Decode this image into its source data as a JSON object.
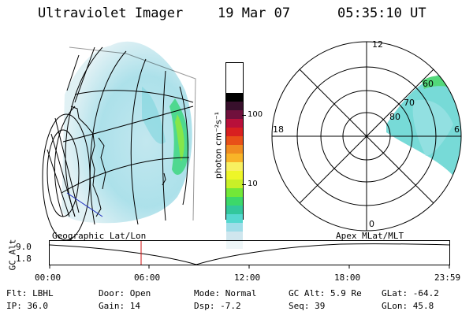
{
  "header": {
    "instrument": "Ultraviolet Imager",
    "date": "19 Mar 07",
    "time": "05:35:10 UT"
  },
  "colorbar": {
    "unit_label": "photon cm⁻²s⁻¹",
    "ticks": [
      "100",
      "10"
    ],
    "colors": [
      "#eef6f8",
      "#cfe6ee",
      "#9fdde8",
      "#55d8cf",
      "#32c79c",
      "#3cd86a",
      "#72e838",
      "#c8f028",
      "#eef628",
      "#f8f060",
      "#f8b428",
      "#f08c20",
      "#e85018",
      "#d82020",
      "#b8103a",
      "#70103c",
      "#38102c",
      "#000000"
    ]
  },
  "left_panel": {
    "caption": "Geographic Lat/Lon"
  },
  "right_panel": {
    "caption": "Apex MLat/MLT",
    "lat_labels": [
      "80",
      "70",
      "60"
    ],
    "mlt_labels": [
      "12",
      "18",
      "6",
      "0"
    ]
  },
  "altitude_strip": {
    "axis_label": "GC Alt",
    "y_ticks": [
      "9.0",
      "1.8"
    ],
    "x_ticks": [
      "00:00",
      "06:00",
      "12:00",
      "18:00",
      "23:59"
    ],
    "marker_color": "#d01010"
  },
  "status": {
    "row1": [
      {
        "label": "Flt:",
        "value": "LBHL"
      },
      {
        "label": "Door:",
        "value": "Open"
      },
      {
        "label": "Mode:",
        "value": "Normal"
      },
      {
        "label": "GC Alt:",
        "value": "5.9 Re"
      },
      {
        "label": "GLat:",
        "value": "-64.2"
      }
    ],
    "row2": [
      {
        "label": "IP:",
        "value": "36.0"
      },
      {
        "label": "Gain:",
        "value": "14"
      },
      {
        "label": "Dsp:",
        "value": "-7.2"
      },
      {
        "label": "Seq:",
        "value": "39"
      },
      {
        "label": "GLon:",
        "value": "45.8"
      }
    ]
  }
}
